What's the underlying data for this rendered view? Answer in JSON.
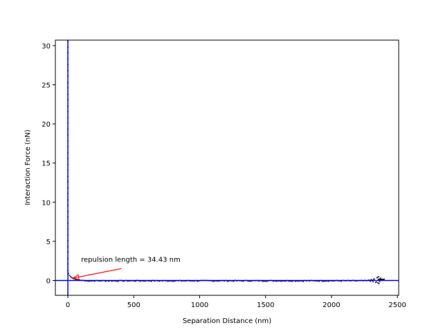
{
  "chart_data": {
    "type": "scatter",
    "title": "",
    "xlabel": "Separation Distance (nm)",
    "ylabel": "Interaction Force (nN)",
    "xlim": [
      -95,
      2510
    ],
    "ylim": [
      -1.9,
      30.7
    ],
    "xticks": [
      0,
      500,
      1000,
      1500,
      2000,
      2500
    ],
    "yticks": [
      0,
      5,
      10,
      15,
      20,
      25,
      30
    ],
    "xtick_labels": [
      "0",
      "500",
      "1000",
      "1500",
      "2000",
      "2500"
    ],
    "ytick_labels": [
      "0",
      "5",
      "10",
      "15",
      "20",
      "25",
      "30"
    ],
    "grid": false,
    "legend": "none",
    "colors": {
      "points": "#1a1a1a",
      "reference_lines": "#0000ff",
      "annotation_arrow": "#ff0000"
    },
    "reference_lines": {
      "vertical_x": 0,
      "horizontal_y": 0
    },
    "annotation": {
      "text": "repulsion length = 34.43 nm",
      "text_at": [
        100,
        2.4
      ],
      "arrow_tip": [
        40,
        0.3
      ]
    },
    "series": [
      {
        "vertical_segment": {
          "x": 0,
          "y": [
            30.5,
            29.8,
            29.1,
            28.3,
            27.6,
            26.8,
            26.1,
            25.3,
            24.6,
            23.8,
            23.1,
            22.3,
            21.6,
            20.8,
            20.1,
            19.3,
            18.6,
            17.8,
            17.1,
            16.3,
            15.6,
            14.8,
            14.1,
            13.3,
            12.6,
            11.8,
            11.1,
            10.3,
            9.6,
            8.8,
            8.1,
            7.3,
            6.6,
            5.8,
            5.1,
            4.3,
            3.6,
            2.8,
            2.1,
            1.3
          ]
        },
        "decay": {
          "x": [
            5,
            12,
            20,
            28,
            36,
            45,
            55,
            65,
            75,
            90,
            105,
            120
          ],
          "y": [
            0.9,
            0.65,
            0.5,
            0.38,
            0.3,
            0.22,
            0.16,
            0.12,
            0.08,
            0.05,
            0.03,
            0.01
          ]
        },
        "baseline": {
          "x_start": 130,
          "x_end": 2280,
          "step": 12,
          "y": -0.05,
          "noise": 0.07
        },
        "tail": {
          "x": [
            2285,
            2295,
            2305,
            2315,
            2325,
            2335,
            2345,
            2352,
            2358,
            2365,
            2372,
            2380,
            2300,
            2320,
            2340,
            2350,
            2360,
            2370
          ],
          "y": [
            0.05,
            -0.1,
            0.1,
            -0.15,
            0.2,
            -0.25,
            0.35,
            -0.3,
            0.5,
            -0.15,
            0.3,
            0.1,
            0.08,
            0.15,
            -0.2,
            0.4,
            -0.4,
            0.25
          ]
        },
        "cluster": {
          "x_start": 2355,
          "x_end": 2400,
          "step": 3,
          "y": 0.12,
          "noise": 0.05
        }
      }
    ]
  }
}
